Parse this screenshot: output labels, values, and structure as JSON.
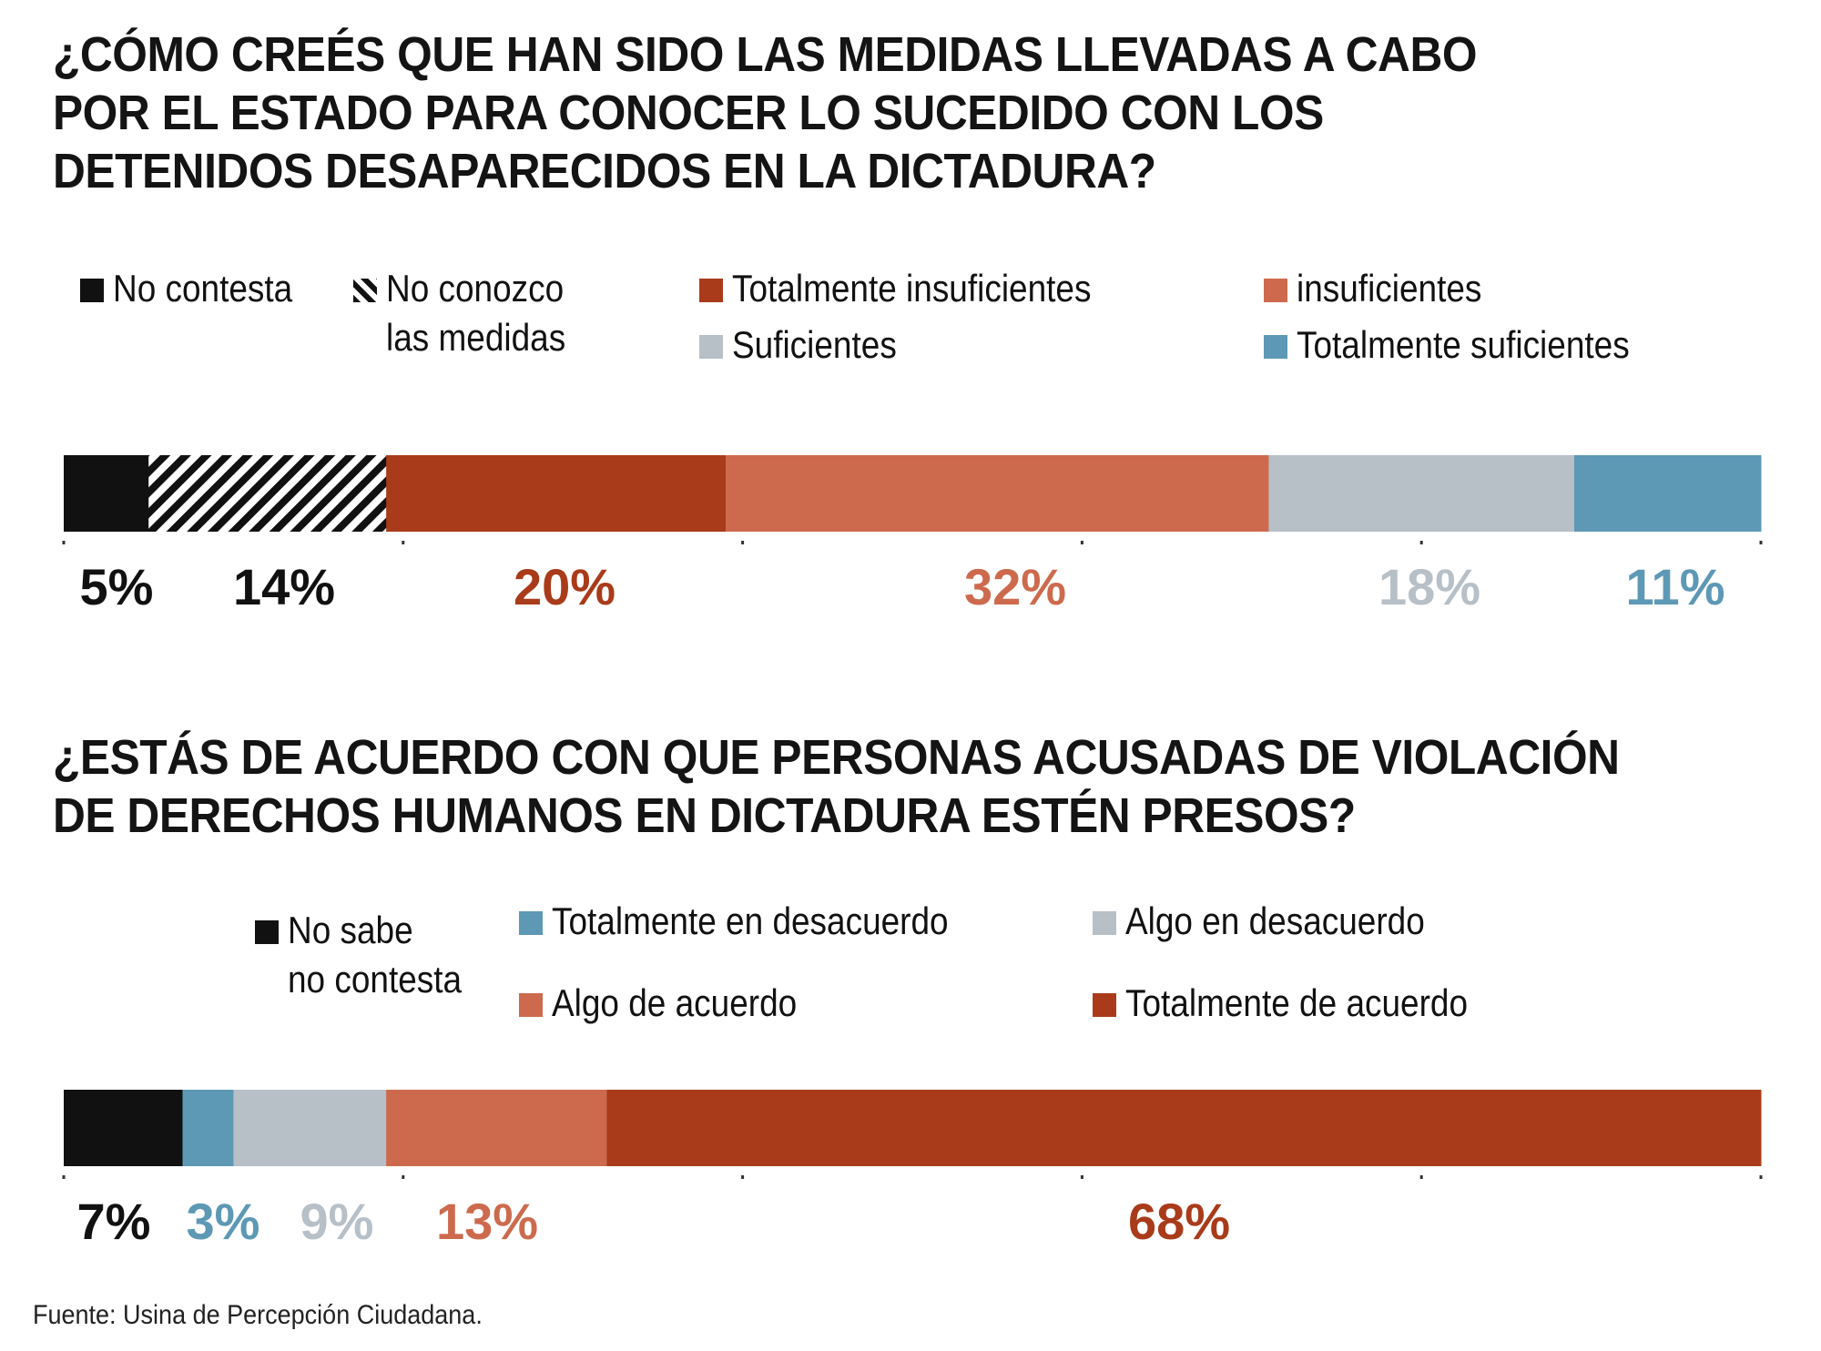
{
  "chart_data": [
    {
      "type": "bar",
      "orientation": "horizontal-stacked",
      "title": "¿CÓMO CREÉS QUE HAN SIDO LAS MEDIDAS LLEVADAS A CABO\nPOR EL ESTADO PARA CONOCER LO SUCEDIDO CON LOS\nDETENIDOS DESAPARECIDOS EN LA DICTADURA?",
      "legend_position": "top",
      "series": [
        {
          "name": "No contesta",
          "value": 5,
          "label": "5%",
          "color": "#111111",
          "label_color": "#111111",
          "pattern": "solid"
        },
        {
          "name": "No conozco\nlas medidas",
          "value": 14,
          "label": "14%",
          "color": "#111111",
          "label_color": "#111111",
          "pattern": "hatch"
        },
        {
          "name": "Totalmente insuficientes",
          "value": 20,
          "label": "20%",
          "color": "#a93b1a",
          "label_color": "#a93b1a",
          "pattern": "solid"
        },
        {
          "name": "insuficientes",
          "value": 32,
          "label": "32%",
          "color": "#cd6a4e",
          "label_color": "#cd6a4e",
          "pattern": "solid"
        },
        {
          "name": "Suficientes",
          "value": 18,
          "label": "18%",
          "color": "#b7bfc7",
          "label_color": "#b7bfc7",
          "pattern": "solid"
        },
        {
          "name": "Totalmente suficientes",
          "value": 11,
          "label": "11%",
          "color": "#5d98b5",
          "label_color": "#5d98b5",
          "pattern": "solid"
        }
      ],
      "xlim": [
        0,
        100
      ]
    },
    {
      "type": "bar",
      "orientation": "horizontal-stacked",
      "title": "¿ESTÁS DE ACUERDO CON QUE PERSONAS ACUSADAS DE VIOLACIÓN\nDE DERECHOS HUMANOS EN DICTADURA ESTÉN PRESOS?",
      "legend_position": "top",
      "series": [
        {
          "name": "No sabe\nno contesta",
          "value": 7,
          "label": "7%",
          "color": "#111111",
          "label_color": "#111111",
          "pattern": "solid"
        },
        {
          "name": "Totalmente en desacuerdo",
          "value": 3,
          "label": "3%",
          "color": "#5d98b5",
          "label_color": "#5d98b5",
          "pattern": "solid"
        },
        {
          "name": "Algo en desacuerdo",
          "value": 9,
          "label": "9%",
          "color": "#b7bfc7",
          "label_color": "#b7bfc7",
          "pattern": "solid"
        },
        {
          "name": "Algo de acuerdo",
          "value": 13,
          "label": "13%",
          "color": "#cd6a4e",
          "label_color": "#cd6a4e",
          "pattern": "solid"
        },
        {
          "name": "Totalmente de acuerdo",
          "value": 68,
          "label": "68%",
          "color": "#a93b1a",
          "label_color": "#a93b1a",
          "pattern": "solid"
        }
      ],
      "xlim": [
        0,
        100
      ]
    }
  ],
  "source": "Fuente: Usina de Percepción Ciudadana."
}
